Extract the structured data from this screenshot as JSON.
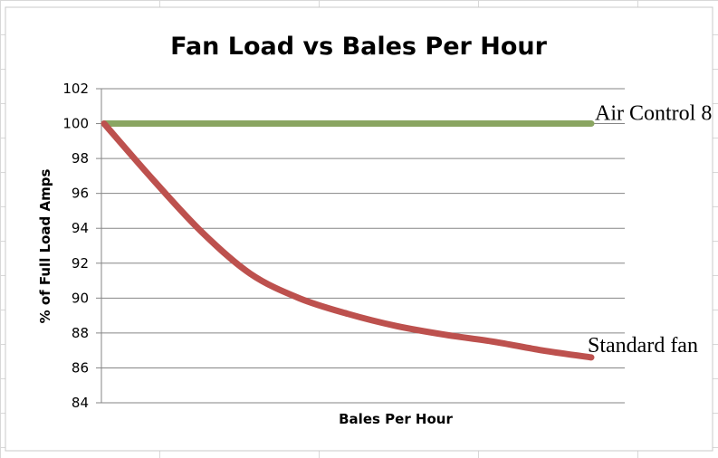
{
  "chart_data": {
    "type": "line",
    "title": "Fan Load vs Bales Per Hour",
    "xlabel": "Bales Per Hour",
    "ylabel": "% of Full Load Amps",
    "ylim": [
      84,
      102
    ],
    "yticks": [
      "84",
      "86",
      "88",
      "90",
      "92",
      "94",
      "96",
      "98",
      "100",
      "102"
    ],
    "grid": true,
    "legend": "none",
    "x": [
      0,
      1,
      2,
      3,
      4,
      5,
      6,
      7,
      8,
      9,
      10
    ],
    "series": [
      {
        "name": "Air Control 8",
        "color": "#8aa561",
        "values": [
          100,
          100,
          100,
          100,
          100,
          100,
          100,
          100,
          100,
          100,
          100
        ]
      },
      {
        "name": "Standard fan",
        "color": "#bd514e",
        "values": [
          100,
          96.8,
          93.8,
          91.4,
          90.0,
          89.1,
          88.4,
          87.9,
          87.5,
          87.0,
          86.6
        ]
      }
    ]
  }
}
